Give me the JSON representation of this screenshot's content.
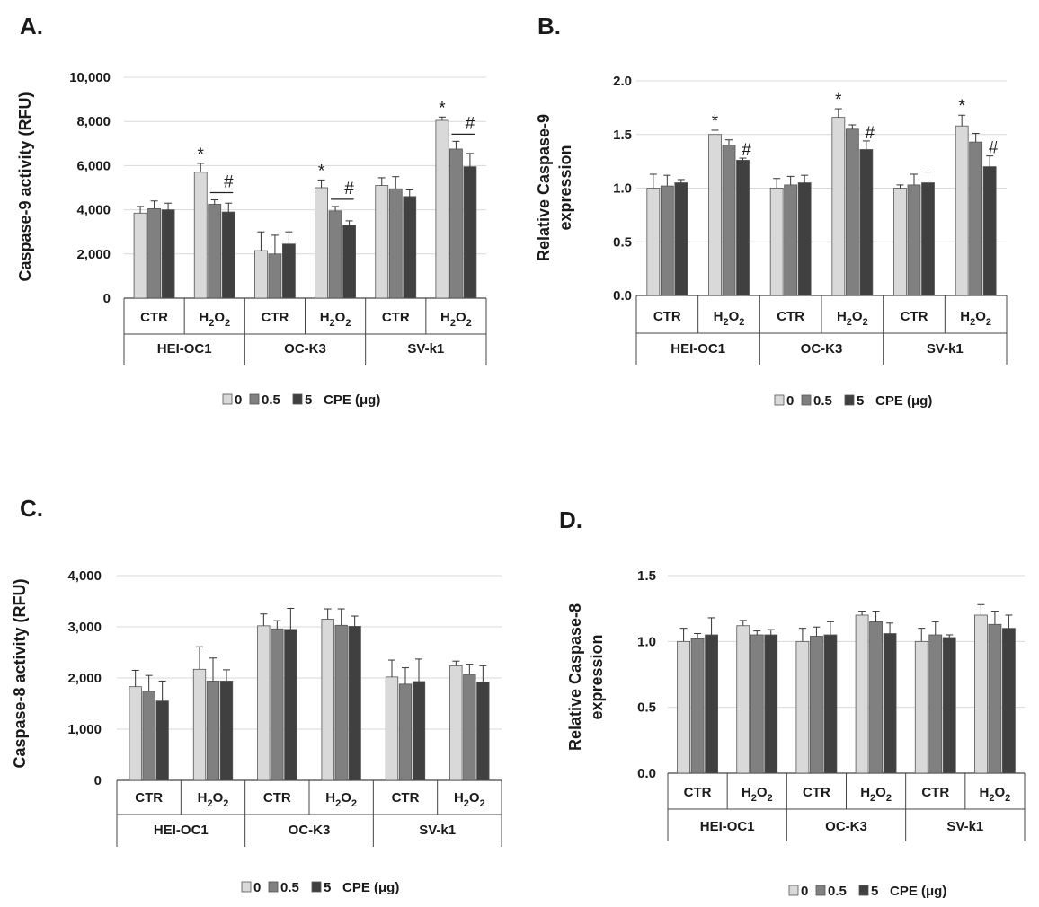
{
  "chart_data": [
    {
      "type": "bar",
      "panel": "A.",
      "ylabel": "Caspase-9 activity (RFU)",
      "ylim": [
        0,
        10000
      ],
      "yticks": [
        "0",
        "2,000",
        "4,000",
        "6,000",
        "8,000",
        "10,000"
      ],
      "groups": [
        "HEI-OC1",
        "OC-K3",
        "SV-k1"
      ],
      "categories": [
        "CTR",
        "H2O2",
        "CTR",
        "H2O2",
        "CTR",
        "H2O2"
      ],
      "series": [
        {
          "name": "0",
          "values": [
            3850,
            5700,
            2150,
            5000,
            5100,
            8050
          ],
          "errors": [
            300,
            400,
            850,
            350,
            350,
            150
          ]
        },
        {
          "name": "0.5",
          "values": [
            4050,
            4250,
            2000,
            3950,
            4950,
            6750
          ],
          "errors": [
            350,
            200,
            850,
            200,
            550,
            350
          ]
        },
        {
          "name": "5",
          "values": [
            4000,
            3900,
            2450,
            3300,
            4600,
            5950
          ],
          "errors": [
            300,
            400,
            550,
            200,
            300,
            600
          ]
        }
      ],
      "annotations": [
        {
          "category_index": 1,
          "series_index": 0,
          "text": "*"
        },
        {
          "category_index": 1,
          "series_index": 2,
          "text": "#"
        },
        {
          "category_index": 3,
          "series_index": 0,
          "text": "*"
        },
        {
          "category_index": 3,
          "series_index": 2,
          "text": "#"
        },
        {
          "category_index": 5,
          "series_index": 0,
          "text": "*"
        },
        {
          "category_index": 5,
          "series_index": 2,
          "text": "#"
        }
      ],
      "legend": {
        "labels": [
          "0",
          "0.5",
          "5"
        ],
        "unit": "CPE (μg)"
      }
    },
    {
      "type": "bar",
      "panel": "B.",
      "ylabel": "Relative Caspase-9 expression",
      "ylabel_lines": [
        "Relative Caspase-9",
        "expression"
      ],
      "ylim": [
        0,
        2
      ],
      "yticks": [
        "0.0",
        "0.5",
        "1.0",
        "1.5",
        "2.0"
      ],
      "groups": [
        "HEI-OC1",
        "OC-K3",
        "SV-k1"
      ],
      "categories": [
        "CTR",
        "H2O2",
        "CTR",
        "H2O2",
        "CTR",
        "H2O2"
      ],
      "series": [
        {
          "name": "0",
          "values": [
            1.0,
            1.5,
            1.0,
            1.66,
            1.0,
            1.58
          ],
          "errors": [
            0.13,
            0.04,
            0.09,
            0.08,
            0.03,
            0.1
          ]
        },
        {
          "name": "0.5",
          "values": [
            1.02,
            1.4,
            1.03,
            1.55,
            1.03,
            1.43
          ],
          "errors": [
            0.1,
            0.05,
            0.08,
            0.04,
            0.1,
            0.08
          ]
        },
        {
          "name": "5",
          "values": [
            1.05,
            1.26,
            1.05,
            1.36,
            1.05,
            1.2
          ],
          "errors": [
            0.03,
            0.02,
            0.07,
            0.08,
            0.1,
            0.1
          ]
        }
      ],
      "annotations": [
        {
          "category_index": 1,
          "series_index": 0,
          "text": "*"
        },
        {
          "category_index": 1,
          "series_index": 2,
          "text": "#"
        },
        {
          "category_index": 3,
          "series_index": 0,
          "text": "*"
        },
        {
          "category_index": 3,
          "series_index": 2,
          "text": "#"
        },
        {
          "category_index": 5,
          "series_index": 0,
          "text": "*"
        },
        {
          "category_index": 5,
          "series_index": 2,
          "text": "#"
        }
      ],
      "legend": {
        "labels": [
          "0",
          "0.5",
          "5"
        ],
        "unit": "CPE (μg)"
      }
    },
    {
      "type": "bar",
      "panel": "C.",
      "ylabel": "Caspase-8 activity  (RFU)",
      "ylim": [
        0,
        4000
      ],
      "yticks": [
        "0",
        "1,000",
        "2,000",
        "3,000",
        "4,000"
      ],
      "groups": [
        "HEI-OC1",
        "OC-K3",
        "SV-k1"
      ],
      "categories": [
        "CTR",
        "H2O2",
        "CTR",
        "H2O2",
        "CTR",
        "H2O2"
      ],
      "series": [
        {
          "name": "0",
          "values": [
            1830,
            2170,
            3020,
            3150,
            2020,
            2240
          ],
          "errors": [
            320,
            440,
            230,
            200,
            330,
            90
          ]
        },
        {
          "name": "0.5",
          "values": [
            1740,
            1940,
            2960,
            3030,
            1880,
            2070
          ],
          "errors": [
            310,
            450,
            160,
            320,
            320,
            200
          ]
        },
        {
          "name": "5",
          "values": [
            1550,
            1940,
            2950,
            3010,
            1930,
            1920
          ],
          "errors": [
            390,
            220,
            410,
            200,
            440,
            320
          ]
        }
      ],
      "annotations": [],
      "legend": {
        "labels": [
          "0",
          "0.5",
          "5"
        ],
        "unit": "CPE (μg)"
      }
    },
    {
      "type": "bar",
      "panel": "D.",
      "ylabel": "Relative Caspase-8 expression",
      "ylabel_lines": [
        "Relative Caspase-8",
        "expression"
      ],
      "ylim": [
        0,
        1.5
      ],
      "yticks": [
        "0.0",
        "0.5",
        "1.0",
        "1.5"
      ],
      "groups": [
        "HEI-OC1",
        "OC-K3",
        "SV-k1"
      ],
      "categories": [
        "CTR",
        "H2O2",
        "CTR",
        "H2O2",
        "CTR",
        "H2O2"
      ],
      "series": [
        {
          "name": "0",
          "values": [
            1.0,
            1.12,
            1.0,
            1.2,
            1.0,
            1.2
          ],
          "errors": [
            0.1,
            0.04,
            0.1,
            0.03,
            0.1,
            0.08
          ]
        },
        {
          "name": "0.5",
          "values": [
            1.02,
            1.05,
            1.04,
            1.15,
            1.05,
            1.13
          ],
          "errors": [
            0.04,
            0.03,
            0.07,
            0.08,
            0.1,
            0.1
          ]
        },
        {
          "name": "5",
          "values": [
            1.05,
            1.05,
            1.05,
            1.06,
            1.03,
            1.1
          ],
          "errors": [
            0.13,
            0.04,
            0.1,
            0.08,
            0.02,
            0.1
          ]
        }
      ],
      "annotations": [],
      "legend": {
        "labels": [
          "0",
          "0.5",
          "5"
        ],
        "unit": "CPE (μg)"
      }
    }
  ],
  "colors": {
    "series": [
      "#d9d9d9",
      "#808080",
      "#404040"
    ],
    "bar_edge": "#555555",
    "axis": "#444444",
    "grid": "#d9d9d9",
    "text": "#1a1a1a"
  }
}
